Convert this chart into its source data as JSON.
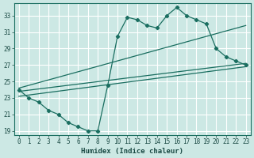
{
  "xlabel": "Humidex (Indice chaleur)",
  "background_color": "#cce8e4",
  "grid_color": "#ffffff",
  "line_color": "#1a6e60",
  "xlim": [
    -0.5,
    23.5
  ],
  "ylim": [
    18.5,
    34.5
  ],
  "xticks": [
    0,
    1,
    2,
    3,
    4,
    5,
    6,
    7,
    8,
    9,
    10,
    11,
    12,
    13,
    14,
    15,
    16,
    17,
    18,
    19,
    20,
    21,
    22,
    23
  ],
  "yticks": [
    19,
    21,
    23,
    25,
    27,
    29,
    31,
    33
  ],
  "main_x": [
    0,
    1,
    2,
    3,
    4,
    5,
    6,
    7,
    8,
    9,
    10,
    11,
    12,
    13,
    14,
    15,
    16,
    17,
    18,
    19,
    20,
    21,
    22,
    23
  ],
  "main_y": [
    24.0,
    23.0,
    22.5,
    21.5,
    21.0,
    20.0,
    19.5,
    19.0,
    19.0,
    24.5,
    30.5,
    32.8,
    32.5,
    31.8,
    31.5,
    33.0,
    34.0,
    33.0,
    32.5,
    32.0,
    29.0,
    28.0,
    27.5,
    27.0
  ],
  "line1_x": [
    0,
    23
  ],
  "line1_y": [
    23.2,
    26.8
  ],
  "line2_x": [
    0,
    23
  ],
  "line2_y": [
    24.2,
    31.8
  ],
  "line3_x": [
    0,
    23
  ],
  "line3_y": [
    23.8,
    27.2
  ]
}
